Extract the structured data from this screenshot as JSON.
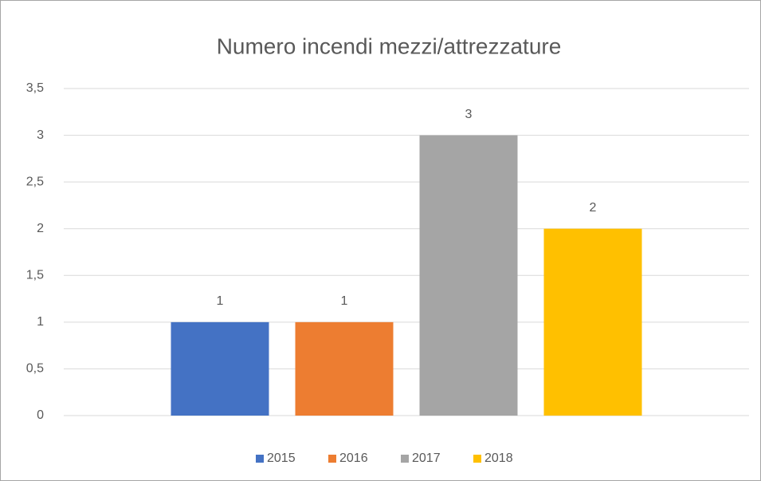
{
  "chart_data": {
    "type": "bar",
    "title": "Numero incendi mezzi/attrezzature",
    "categories": [
      null
    ],
    "series": [
      {
        "name": "2015",
        "color": "#4472c4",
        "values": [
          1
        ]
      },
      {
        "name": "2016",
        "color": "#ed7d31",
        "values": [
          1
        ]
      },
      {
        "name": "2017",
        "color": "#a5a5a5",
        "values": [
          3
        ]
      },
      {
        "name": "2018",
        "color": "#ffc000",
        "values": [
          2
        ]
      }
    ],
    "ylim": [
      0,
      3.5
    ],
    "yticks": [
      0,
      {
        "value": 0.5,
        "label": "0,5"
      },
      1,
      {
        "value": 1.5,
        "label": "1,5"
      },
      2,
      {
        "value": 2.5,
        "label": "2,5"
      },
      3,
      {
        "value": 3.5,
        "label": "3,5"
      }
    ],
    "grid": true,
    "legend": "bottom"
  }
}
